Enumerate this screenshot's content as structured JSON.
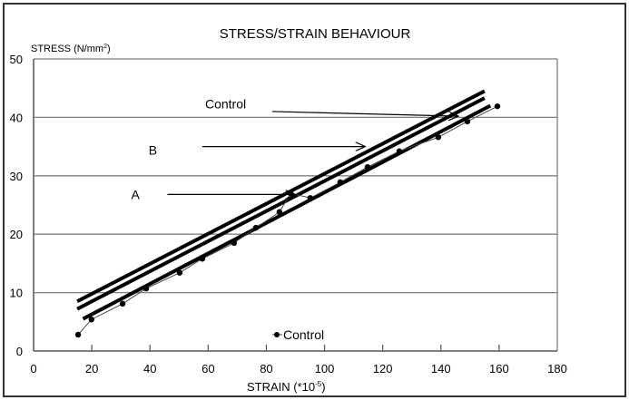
{
  "chart_data": {
    "type": "line",
    "title": "STRESS/STRAIN BEHAVIOUR",
    "xlabel": "STRAIN (*10-5)",
    "xlabel_base": "STRAIN (*10",
    "xlabel_sup": "-5",
    "xlabel_tail": ")",
    "ylabel": "STRESS (N/mm2)",
    "ylabel_base": "STRESS (N/mm",
    "ylabel_sup": "2",
    "ylabel_tail": ")",
    "xlim": [
      0,
      180
    ],
    "ylim": [
      0,
      50
    ],
    "xticks": [
      "0",
      "20",
      "40",
      "60",
      "80",
      "100",
      "120",
      "140",
      "160",
      "180"
    ],
    "xtick_values": [
      0,
      20,
      40,
      60,
      80,
      100,
      120,
      140,
      160,
      180
    ],
    "yticks": [
      "0",
      "10",
      "20",
      "30",
      "40",
      "50"
    ],
    "ytick_values": [
      0,
      10,
      20,
      30,
      40,
      50
    ],
    "grid": "horizontal",
    "legend": {
      "position": "bottom-center",
      "entries": [
        "Control"
      ]
    },
    "series": [
      {
        "name": "Control",
        "style": "thin line with dot markers",
        "x": [
          15.3,
          19.9,
          30.6,
          38.7,
          50.2,
          58.0,
          68.9,
          76.4,
          84.5,
          88.3,
          95.1,
          105.4,
          114.8,
          125.7,
          139.1,
          149.1,
          159.4
        ],
        "y": [
          2.8,
          5.4,
          8.1,
          10.7,
          13.4,
          15.8,
          18.5,
          21.1,
          23.8,
          27.0,
          26.2,
          28.9,
          31.5,
          34.2,
          36.6,
          39.3,
          41.9
        ]
      }
    ],
    "fit_lines": [
      {
        "name": "Control",
        "x": [
          15,
          155
        ],
        "y": [
          8.5,
          44.5
        ]
      },
      {
        "name": "B",
        "x": [
          15,
          155
        ],
        "y": [
          7.2,
          43.3
        ]
      },
      {
        "name": "A",
        "x": [
          17,
          157
        ],
        "y": [
          5.5,
          42.0
        ]
      }
    ],
    "annotations": [
      {
        "text": "Control",
        "tx": 66,
        "ty": 41.5,
        "from": [
          82,
          41.0
        ],
        "to": [
          146,
          40.2
        ]
      },
      {
        "text": "B",
        "tx": 41,
        "ty": 33.6,
        "from": [
          58,
          35.0
        ],
        "to": [
          114,
          35.0
        ]
      },
      {
        "text": "A",
        "tx": 35,
        "ty": 26.0,
        "from": [
          46,
          26.8
        ],
        "to": [
          90,
          26.8
        ]
      }
    ],
    "colors": {
      "line": "#000000",
      "grid": "#808080",
      "frame": "#333333"
    }
  }
}
